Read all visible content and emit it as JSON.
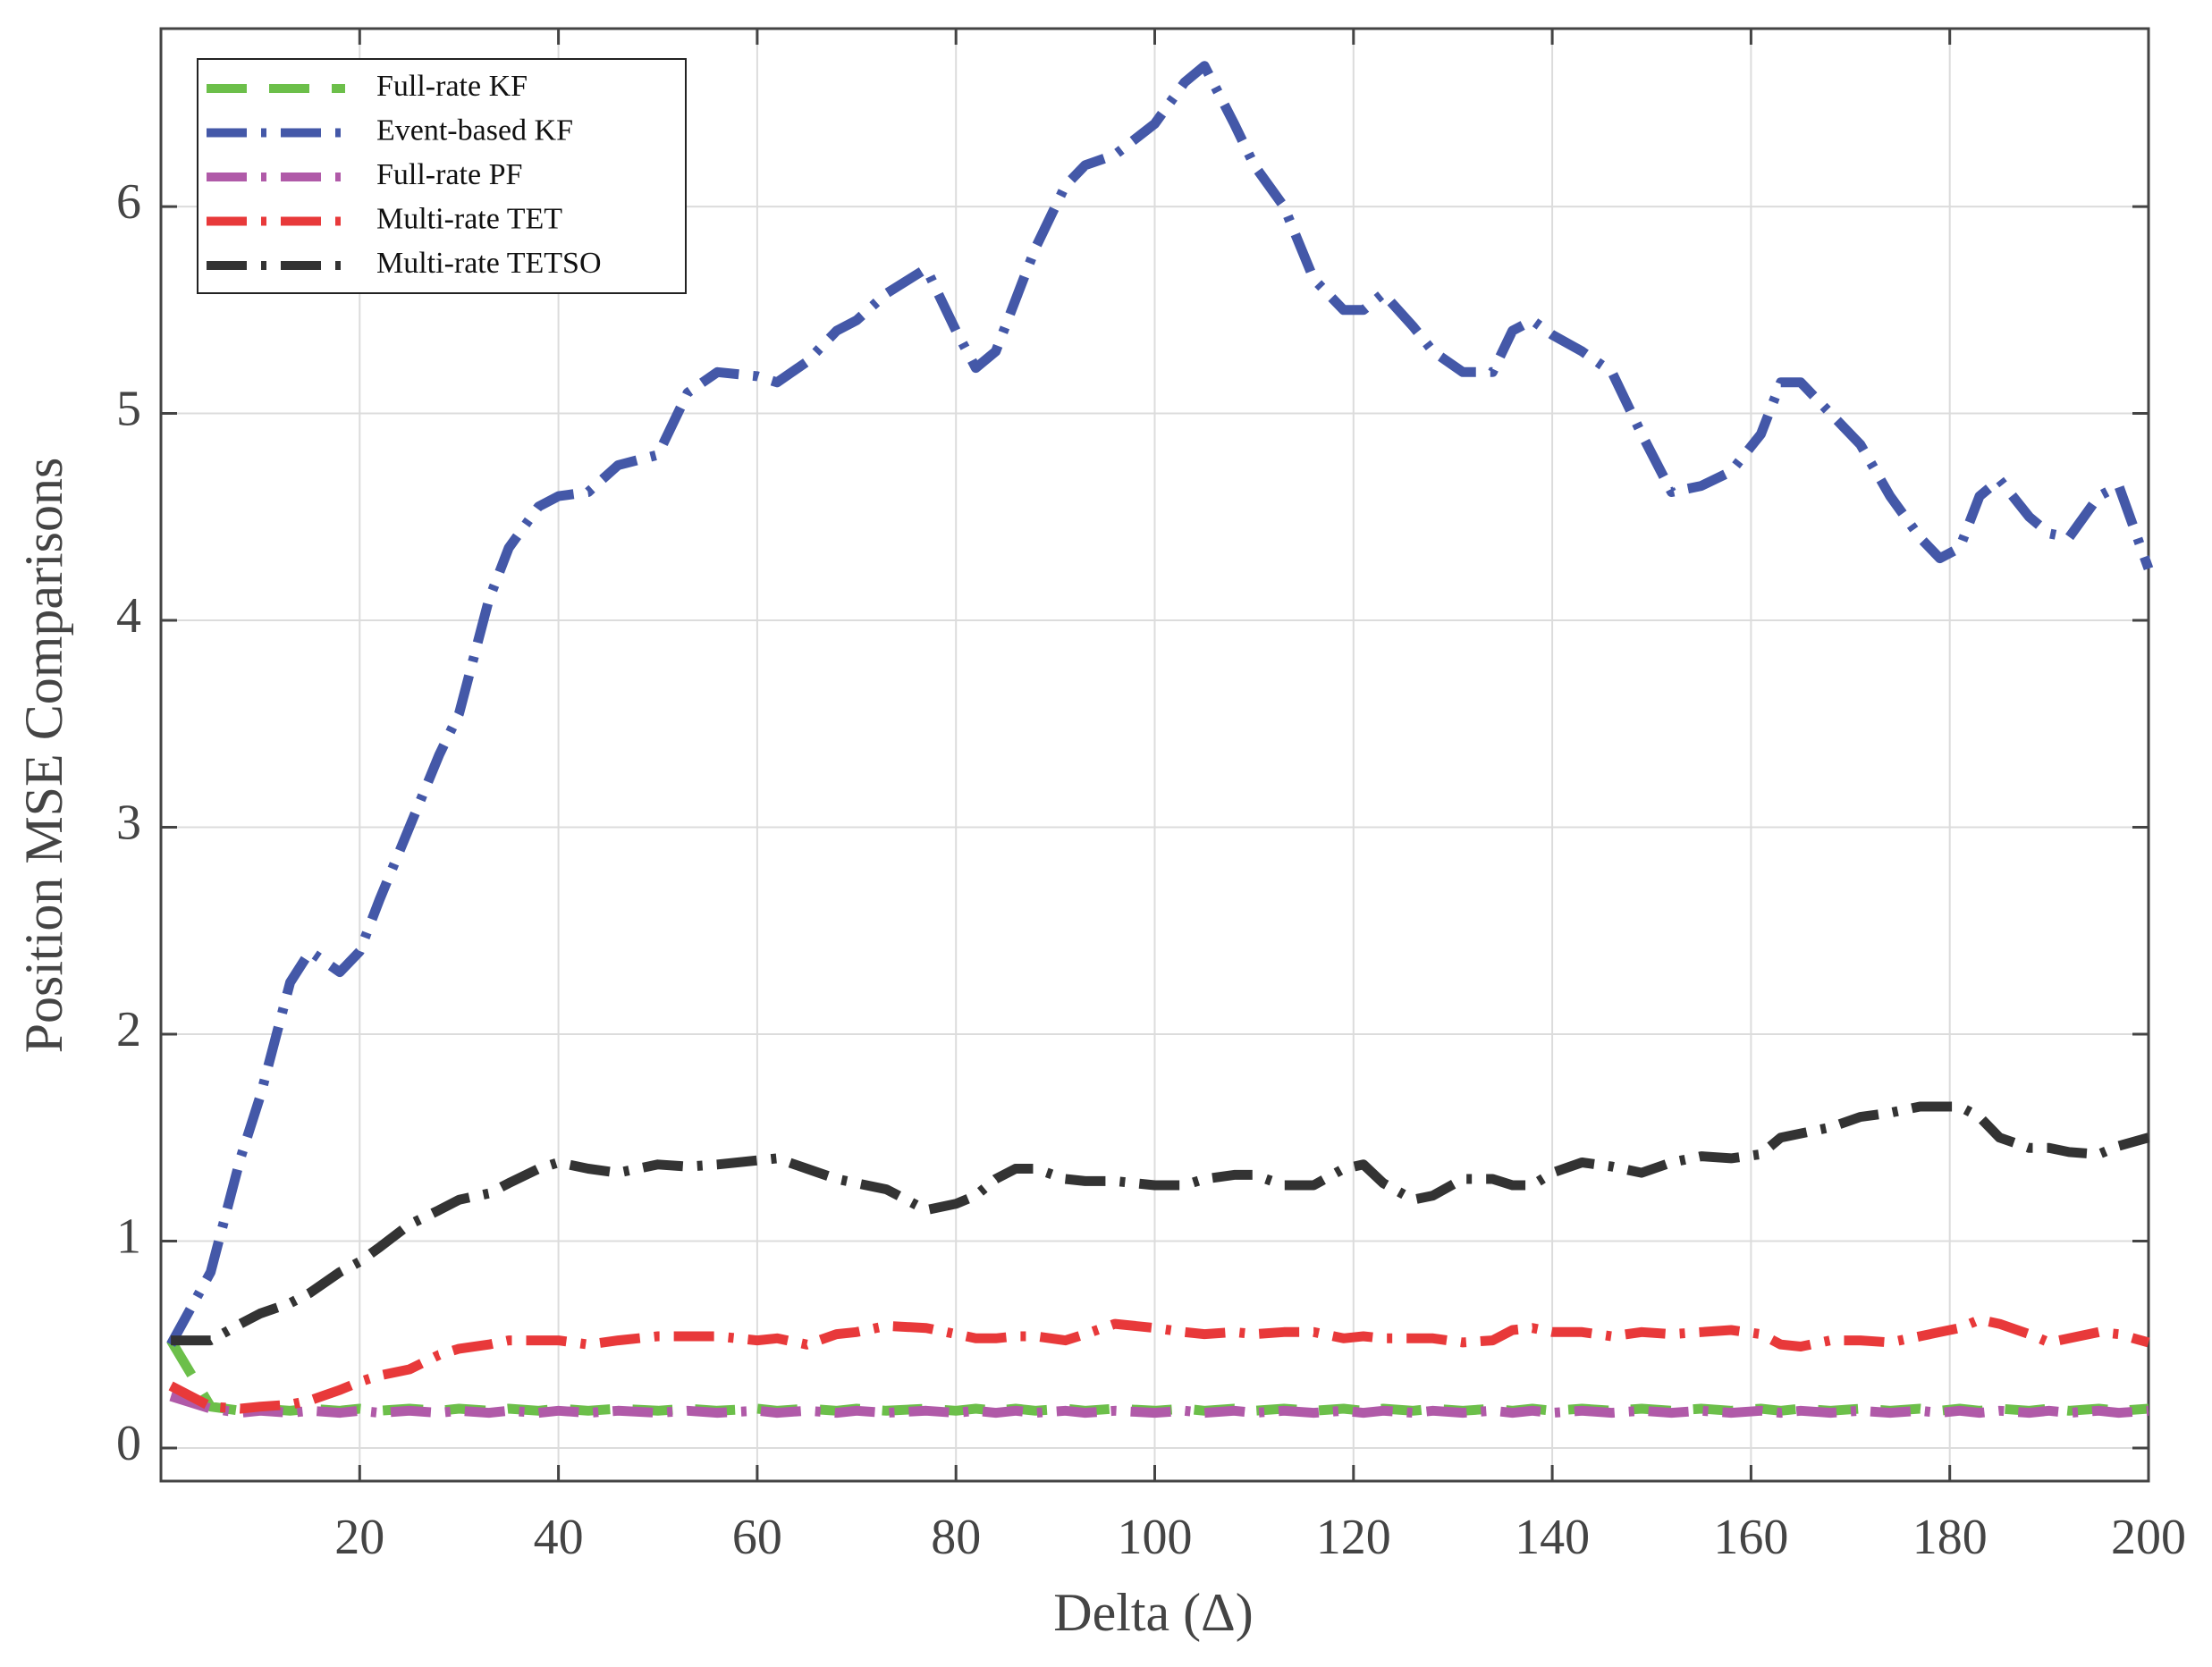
{
  "chart_data": {
    "type": "line",
    "x_label": "Delta (Δ)",
    "y_label": "Position MSE Comparisons",
    "x": [
      1,
      5,
      8,
      10,
      13,
      15,
      18,
      20,
      22,
      25,
      28,
      30,
      33,
      35,
      38,
      40,
      43,
      46,
      50,
      53,
      56,
      60,
      62,
      65,
      68,
      70,
      73,
      77,
      80,
      82,
      84,
      86,
      88,
      91,
      93,
      96,
      100,
      103,
      105,
      108,
      110,
      113,
      116,
      119,
      121,
      123,
      126,
      128,
      131,
      134,
      136,
      138,
      140,
      143,
      146,
      149,
      152,
      155,
      158,
      161,
      163,
      165,
      168,
      171,
      174,
      177,
      179,
      181,
      183,
      185,
      188,
      190,
      192,
      195,
      197,
      200
    ],
    "series": [
      {
        "name": "Full-rate KF",
        "color": "#6cbf4a",
        "linestyle": "dashed",
        "values": [
          0.52,
          0.2,
          0.18,
          0.19,
          0.18,
          0.19,
          0.18,
          0.19,
          0.18,
          0.19,
          0.18,
          0.19,
          0.18,
          0.19,
          0.18,
          0.19,
          0.18,
          0.19,
          0.18,
          0.19,
          0.18,
          0.19,
          0.18,
          0.19,
          0.18,
          0.19,
          0.18,
          0.19,
          0.18,
          0.19,
          0.18,
          0.19,
          0.18,
          0.19,
          0.18,
          0.19,
          0.18,
          0.19,
          0.18,
          0.19,
          0.18,
          0.19,
          0.18,
          0.19,
          0.18,
          0.19,
          0.18,
          0.19,
          0.18,
          0.19,
          0.18,
          0.19,
          0.18,
          0.19,
          0.18,
          0.19,
          0.18,
          0.19,
          0.18,
          0.19,
          0.18,
          0.19,
          0.18,
          0.19,
          0.18,
          0.19,
          0.18,
          0.19,
          0.18,
          0.19,
          0.18,
          0.19,
          0.18,
          0.19,
          0.18,
          0.19
        ]
      },
      {
        "name": "Event-based KF",
        "color": "#4458a8",
        "linestyle": "dashdot",
        "values": [
          0.5,
          0.85,
          1.4,
          1.7,
          2.25,
          2.4,
          2.3,
          2.4,
          2.65,
          3.0,
          3.35,
          3.55,
          4.1,
          4.35,
          4.55,
          4.6,
          4.62,
          4.75,
          4.8,
          5.1,
          5.2,
          5.18,
          5.15,
          5.25,
          5.4,
          5.45,
          5.58,
          5.7,
          5.4,
          5.22,
          5.3,
          5.55,
          5.8,
          6.1,
          6.2,
          6.25,
          6.4,
          6.6,
          6.68,
          6.4,
          6.2,
          6.0,
          5.65,
          5.5,
          5.5,
          5.58,
          5.42,
          5.3,
          5.2,
          5.2,
          5.4,
          5.45,
          5.38,
          5.3,
          5.2,
          4.9,
          4.62,
          4.65,
          4.72,
          4.9,
          5.15,
          5.15,
          5.0,
          4.85,
          4.6,
          4.4,
          4.3,
          4.35,
          4.6,
          4.68,
          4.5,
          4.42,
          4.4,
          4.6,
          4.65,
          4.25
        ]
      },
      {
        "name": "Full-rate PF",
        "color": "#b05aa8",
        "linestyle": "dashdot",
        "values": [
          0.25,
          0.19,
          0.17,
          0.18,
          0.17,
          0.18,
          0.17,
          0.18,
          0.17,
          0.18,
          0.17,
          0.18,
          0.17,
          0.18,
          0.17,
          0.18,
          0.17,
          0.18,
          0.17,
          0.18,
          0.17,
          0.18,
          0.17,
          0.18,
          0.17,
          0.18,
          0.17,
          0.18,
          0.17,
          0.18,
          0.17,
          0.18,
          0.17,
          0.18,
          0.17,
          0.18,
          0.17,
          0.18,
          0.17,
          0.18,
          0.17,
          0.18,
          0.17,
          0.18,
          0.17,
          0.18,
          0.17,
          0.18,
          0.17,
          0.18,
          0.17,
          0.18,
          0.17,
          0.18,
          0.17,
          0.18,
          0.17,
          0.18,
          0.17,
          0.18,
          0.17,
          0.18,
          0.17,
          0.18,
          0.17,
          0.18,
          0.17,
          0.18,
          0.17,
          0.18,
          0.17,
          0.18,
          0.17,
          0.18,
          0.17,
          0.18
        ]
      },
      {
        "name": "Multi-rate TET",
        "color": "#e8393a",
        "linestyle": "dashdot",
        "values": [
          0.3,
          0.2,
          0.19,
          0.2,
          0.21,
          0.23,
          0.28,
          0.32,
          0.35,
          0.38,
          0.45,
          0.48,
          0.5,
          0.52,
          0.52,
          0.52,
          0.5,
          0.52,
          0.54,
          0.54,
          0.54,
          0.52,
          0.53,
          0.5,
          0.55,
          0.56,
          0.59,
          0.58,
          0.55,
          0.53,
          0.53,
          0.54,
          0.54,
          0.52,
          0.55,
          0.6,
          0.58,
          0.56,
          0.55,
          0.56,
          0.55,
          0.56,
          0.56,
          0.53,
          0.54,
          0.53,
          0.53,
          0.53,
          0.51,
          0.52,
          0.57,
          0.58,
          0.56,
          0.56,
          0.54,
          0.56,
          0.55,
          0.56,
          0.57,
          0.55,
          0.5,
          0.49,
          0.52,
          0.52,
          0.51,
          0.54,
          0.56,
          0.58,
          0.62,
          0.6,
          0.55,
          0.51,
          0.53,
          0.56,
          0.55,
          0.51
        ]
      },
      {
        "name": "Multi-rate TETSO",
        "color": "#333333",
        "linestyle": "dashdot",
        "values": [
          0.52,
          0.52,
          0.6,
          0.65,
          0.7,
          0.75,
          0.85,
          0.9,
          0.97,
          1.08,
          1.15,
          1.2,
          1.23,
          1.28,
          1.35,
          1.38,
          1.35,
          1.33,
          1.37,
          1.36,
          1.37,
          1.39,
          1.4,
          1.35,
          1.3,
          1.28,
          1.25,
          1.15,
          1.18,
          1.22,
          1.3,
          1.35,
          1.35,
          1.3,
          1.29,
          1.29,
          1.27,
          1.27,
          1.3,
          1.32,
          1.32,
          1.27,
          1.27,
          1.35,
          1.37,
          1.28,
          1.2,
          1.22,
          1.3,
          1.3,
          1.27,
          1.27,
          1.33,
          1.38,
          1.36,
          1.33,
          1.38,
          1.41,
          1.4,
          1.42,
          1.5,
          1.52,
          1.55,
          1.6,
          1.62,
          1.65,
          1.65,
          1.65,
          1.6,
          1.5,
          1.45,
          1.45,
          1.43,
          1.42,
          1.46,
          1.5
        ]
      }
    ],
    "xlim": [
      0,
      200
    ],
    "ylim": [
      -0.16,
      6.86
    ],
    "xticks": [
      20,
      40,
      60,
      80,
      100,
      120,
      140,
      160,
      180,
      200
    ],
    "yticks": [
      0,
      1,
      2,
      3,
      4,
      5,
      6
    ],
    "grid": true,
    "legend": "upper left"
  }
}
